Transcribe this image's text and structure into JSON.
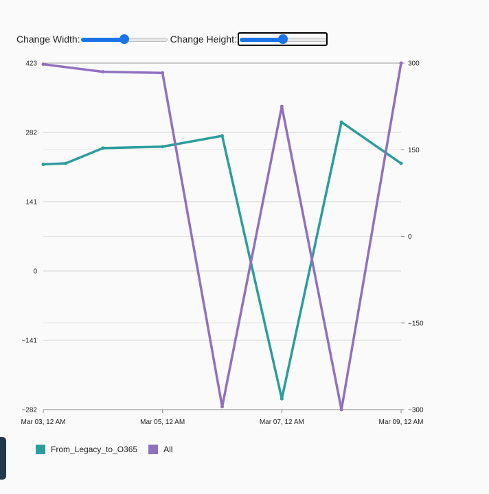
{
  "controls": {
    "width_label": "Change Width:",
    "width_value": 0.5,
    "height_label": "Change Height:",
    "height_value": 0.5
  },
  "chart_data": {
    "type": "line",
    "x_ticks": [
      "Mar 03, 12 AM",
      "Mar 05, 12 AM",
      "Mar 07, 12 AM",
      "Mar 09, 12 AM"
    ],
    "x_range": [
      "2023-03-03 00:00",
      "2023-03-09 00:00"
    ],
    "y_left": {
      "ticks": [
        "423",
        "282",
        "141",
        "0",
        "−141",
        "−282"
      ],
      "range": [
        -282,
        423
      ]
    },
    "y_right": {
      "ticks": [
        "300",
        "150",
        "0",
        "−150",
        "−300"
      ],
      "range": [
        -300,
        300
      ]
    },
    "grid": true,
    "legend_position": "bottom-left",
    "series": [
      {
        "name": "From_Legacy_to_O365",
        "color": "#2a9d9d",
        "axis": "left",
        "points": [
          {
            "x": "2023-03-03 00:00",
            "y": 217
          },
          {
            "x": "2023-03-03 09:00",
            "y": 219
          },
          {
            "x": "2023-03-04 00:00",
            "y": 250
          },
          {
            "x": "2023-03-05 00:00",
            "y": 253
          },
          {
            "x": "2023-03-06 00:00",
            "y": 275
          },
          {
            "x": "2023-03-07 00:00",
            "y": -260
          },
          {
            "x": "2023-03-08 00:00",
            "y": 303
          },
          {
            "x": "2023-03-09 00:00",
            "y": 219
          }
        ]
      },
      {
        "name": "All",
        "color": "#9170c0",
        "axis": "right",
        "points": [
          {
            "x": "2023-03-03 00:00",
            "y": 298
          },
          {
            "x": "2023-03-04 00:00",
            "y": 285
          },
          {
            "x": "2023-03-05 00:00",
            "y": 283
          },
          {
            "x": "2023-03-06 00:00",
            "y": -295
          },
          {
            "x": "2023-03-07 00:00",
            "y": 225
          },
          {
            "x": "2023-03-08 00:00",
            "y": -300
          },
          {
            "x": "2023-03-09 00:00",
            "y": 300
          }
        ]
      }
    ]
  }
}
